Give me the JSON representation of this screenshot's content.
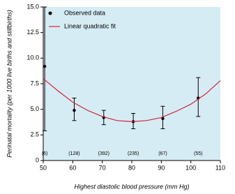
{
  "chart_data": {
    "type": "scatter",
    "x_label": "Highest diastolic blood pressure (mm Hg)",
    "y_label": "Perinatal mortality (per 1000 live births and stillbirths)",
    "xlim": [
      50,
      110
    ],
    "xticks": [
      50,
      60,
      70,
      80,
      90,
      100,
      110
    ],
    "ylim": [
      0,
      15
    ],
    "yticks": [
      0,
      2.5,
      {
        "value": 5,
        "label": "5.0"
      },
      7.5,
      {
        "value": 10,
        "label": "10.0"
      },
      12.5,
      {
        "value": 15,
        "label": "15.0"
      }
    ],
    "plot_background": "#d6ecf5",
    "legend": "top-left",
    "series": [
      {
        "name": "Observed data",
        "type": "scatter",
        "color": "#000000",
        "x": [
          50.5,
          60.5,
          70.5,
          80.5,
          90.5,
          102.5
        ],
        "values": [
          9.2,
          4.9,
          4.2,
          3.8,
          4.1,
          6.1
        ],
        "error_low": [
          2.9,
          3.9,
          3.5,
          3.1,
          3.1,
          4.3
        ],
        "error_high": [
          15,
          6.1,
          4.9,
          4.6,
          5.3,
          8.1
        ]
      },
      {
        "name": "Linear quadratic fit",
        "type": "line",
        "color": "#d2233c",
        "x": [
          50,
          55,
          60,
          65,
          70,
          75,
          80,
          85,
          90,
          95,
          100,
          105,
          110
        ],
        "values": [
          8.0,
          6.8,
          5.7,
          4.9,
          4.3,
          3.9,
          3.8,
          3.9,
          4.2,
          4.8,
          5.5,
          6.5,
          7.8
        ]
      }
    ],
    "count_labels": {
      "labels": [
        "(6)",
        "(128)",
        "(392)",
        "(235)",
        "(67)",
        "(55)"
      ],
      "x": [
        50.5,
        60.5,
        70.5,
        80.5,
        90.5,
        102.5
      ]
    }
  }
}
